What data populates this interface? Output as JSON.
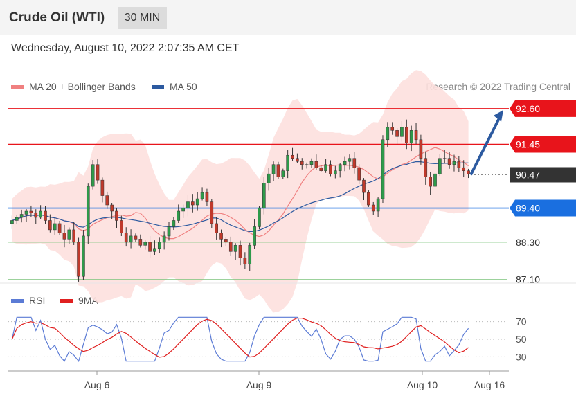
{
  "header": {
    "title": "Crude Oil (WTI)",
    "interval": "30 MIN"
  },
  "timestamp": "Wednesday, August 10, 2022 2:07:35 AM CET",
  "legend": {
    "ma20": {
      "label": "MA 20 + Bollinger Bands",
      "color": "#f08080"
    },
    "ma50": {
      "label": "MA 50",
      "color": "#2c5aa0"
    }
  },
  "credit": "Research © 2022 Trading Central",
  "rsi_legend": {
    "rsi": {
      "label": "RSI",
      "color": "#5b7bd5"
    },
    "ma9": {
      "label": "9MA",
      "color": "#e02020"
    }
  },
  "chart_data": {
    "type": "candlestick",
    "interval": "30 MIN",
    "y_range": [
      86.96,
      93.2
    ],
    "levels": [
      {
        "label": "92.60",
        "value": 92.6,
        "kind": "resistance",
        "color": "#e8141b"
      },
      {
        "label": "91.45",
        "value": 91.45,
        "kind": "resistance",
        "color": "#e8141b"
      },
      {
        "label": "90.47",
        "value": 90.47,
        "kind": "last",
        "color": "#333333"
      },
      {
        "label": "89.40",
        "value": 89.4,
        "kind": "support",
        "color": "#1a6fe0"
      },
      {
        "label": "88.30",
        "value": 88.3,
        "kind": "support",
        "color": "#2ea02e"
      },
      {
        "label": "87.10",
        "value": 87.1,
        "kind": "support",
        "color": "#2ea02e"
      }
    ],
    "forecast_arrow": {
      "from": 90.47,
      "to": 92.6
    },
    "x_ticks": [
      "Aug 6",
      "Aug 9",
      "Aug 10",
      "Aug 16"
    ],
    "ohlc_close": [
      89.0,
      89.1,
      89.2,
      89.3,
      89.25,
      89.1,
      89.3,
      89.0,
      88.7,
      88.9,
      88.6,
      88.4,
      88.7,
      88.3,
      87.2,
      88.5,
      90.1,
      90.8,
      90.3,
      89.8,
      89.5,
      89.3,
      89.0,
      88.6,
      88.3,
      88.5,
      88.4,
      88.2,
      88.3,
      88.0,
      88.1,
      88.3,
      88.5,
      88.8,
      89.0,
      89.3,
      89.4,
      89.6,
      89.5,
      89.7,
      89.9,
      89.6,
      88.9,
      88.6,
      88.4,
      88.3,
      88.0,
      88.2,
      87.8,
      87.6,
      88.2,
      88.8,
      89.4,
      90.2,
      90.5,
      90.8,
      90.4,
      90.6,
      91.1,
      91.0,
      90.9,
      90.8,
      90.8,
      90.9,
      90.7,
      90.6,
      90.8,
      90.5,
      90.6,
      90.8,
      90.9,
      91.0,
      90.7,
      90.3,
      89.9,
      89.5,
      89.3,
      89.7,
      91.6,
      92.0,
      91.9,
      91.7,
      92.0,
      91.5,
      91.9,
      91.6,
      91.0,
      90.4,
      90.1,
      90.5,
      91.0,
      91.0,
      90.8,
      90.9,
      90.7,
      90.6,
      90.5
    ],
    "rsi": {
      "levels": [
        30,
        50,
        70
      ],
      "range": [
        20,
        80
      ]
    }
  }
}
